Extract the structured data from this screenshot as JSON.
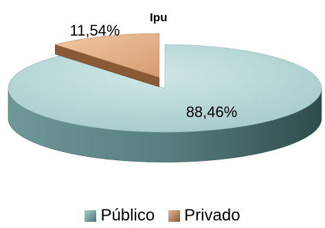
{
  "chart_data": {
    "type": "pie",
    "title": "Ipu",
    "slices": [
      {
        "name": "Público",
        "value": 88.46,
        "label": "88,46%",
        "color": "#a8cfcf",
        "dark": "#4e7474",
        "edge": "#3f6060"
      },
      {
        "name": "Privado",
        "value": 11.54,
        "label": "11,54%",
        "color": "#e9b68e",
        "dark": "#8a5a36",
        "edge": "#5a3a20"
      }
    ],
    "legend_position": "bottom",
    "exploded": "Privado",
    "style": "3d"
  }
}
